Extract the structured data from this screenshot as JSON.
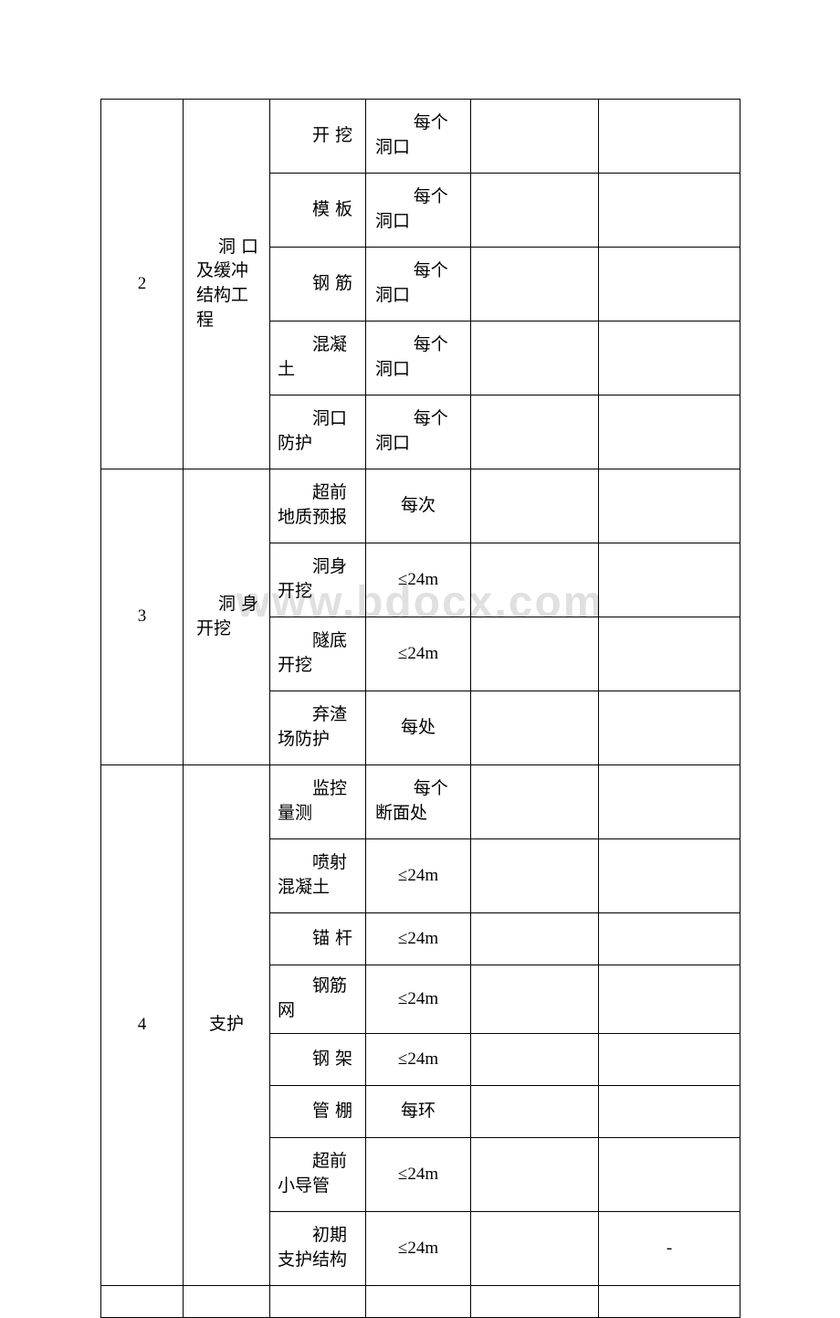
{
  "watermark": "www.bdocx.com",
  "groups": [
    {
      "idx": "2",
      "cat_first": "洞口",
      "cat_rest": "及缓冲结构工程",
      "rows": [
        {
          "item_first": "开挖",
          "item_rest": "",
          "qty_first": "每个",
          "qty_rest": "洞口",
          "h": "tall",
          "item_mode": "j1"
        },
        {
          "item_first": "模板",
          "item_rest": "",
          "qty_first": "每个",
          "qty_rest": "洞口",
          "h": "tall",
          "item_mode": "j1"
        },
        {
          "item_first": "钢筋",
          "item_rest": "",
          "qty_first": "每个",
          "qty_rest": "洞口",
          "h": "tall",
          "item_mode": "j1"
        },
        {
          "item_first": "混凝",
          "item_rest": "土",
          "qty_first": "每个",
          "qty_rest": "洞口",
          "h": "tall",
          "item_mode": "wrap"
        },
        {
          "item_first": "洞口",
          "item_rest": "防护",
          "qty_first": "每个",
          "qty_rest": "洞口",
          "h": "tall",
          "item_mode": "wrap"
        }
      ]
    },
    {
      "idx": "3",
      "cat_first": "洞身",
      "cat_rest": "开挖",
      "rows": [
        {
          "item_first": "超前",
          "item_rest": "地质预报",
          "qty_center": "每次",
          "h": "tall",
          "item_mode": "wrap"
        },
        {
          "item_first": "洞身",
          "item_rest": "开挖",
          "qty_center": "≤24m",
          "h": "tall",
          "item_mode": "wrap"
        },
        {
          "item_first": "隧底",
          "item_rest": "开挖",
          "qty_center": "≤24m",
          "h": "tall",
          "item_mode": "wrap"
        },
        {
          "item_first": "弃渣",
          "item_rest": "场防护",
          "qty_center": "每处",
          "h": "tall",
          "item_mode": "wrap"
        }
      ]
    },
    {
      "idx": "4",
      "cat_first": "支护",
      "cat_rest": "",
      "rows": [
        {
          "item_first": "监控",
          "item_rest": "量测",
          "qty_first": "每个",
          "qty_rest": "断面处",
          "h": "tall",
          "item_mode": "wrap"
        },
        {
          "item_first": "喷射",
          "item_rest": "混凝土",
          "qty_center": "≤24m",
          "h": "tall",
          "item_mode": "wrap"
        },
        {
          "item_first": "锚杆",
          "item_rest": "",
          "qty_center": "≤24m",
          "h": "short",
          "item_mode": "j1"
        },
        {
          "item_first": "钢筋",
          "item_rest": "网",
          "qty_center": "≤24m",
          "h": "med",
          "item_mode": "wrap"
        },
        {
          "item_first": "钢架",
          "item_rest": "",
          "qty_center": "≤24m",
          "h": "short",
          "item_mode": "j1"
        },
        {
          "item_first": "管棚",
          "item_rest": "",
          "qty_center": "每环",
          "h": "short",
          "item_mode": "j1"
        },
        {
          "item_first": "超前",
          "item_rest": "小导管",
          "qty_center": "≤24m",
          "h": "tall",
          "item_mode": "wrap"
        },
        {
          "item_first": "初期",
          "item_rest": "支护结构",
          "qty_center": "≤24m",
          "h": "tall",
          "item_mode": "wrap",
          "col_f": "-"
        }
      ]
    }
  ],
  "trailing_empty_row": true
}
